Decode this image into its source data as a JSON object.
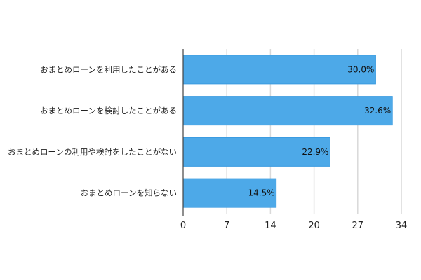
{
  "chart_data": {
    "type": "bar",
    "orientation": "horizontal",
    "categories": [
      "おまとめローンを利用したことがある",
      "おまとめローンを検討したことがある",
      "おまとめローンの利用や検討をしたことがない",
      "おまとめローンを知らない"
    ],
    "values": [
      30.0,
      32.6,
      22.9,
      14.5
    ],
    "data_labels": [
      "30.0%",
      "32.6%",
      "22.9%",
      "14.5%"
    ],
    "xlim": [
      0,
      34
    ],
    "x_ticks": [
      0,
      6.8,
      13.6,
      20.4,
      27.2,
      34
    ],
    "x_tick_labels": [
      "0",
      "7",
      "14",
      "20",
      "27",
      "34"
    ],
    "title": "",
    "xlabel": "",
    "ylabel": "",
    "grid": "vertical",
    "legend": "none",
    "colors": {
      "bar": "#4DA9E8",
      "bar_border": "#3A9BE0",
      "grid": "#d9d9d9",
      "axis": "#444444"
    }
  }
}
